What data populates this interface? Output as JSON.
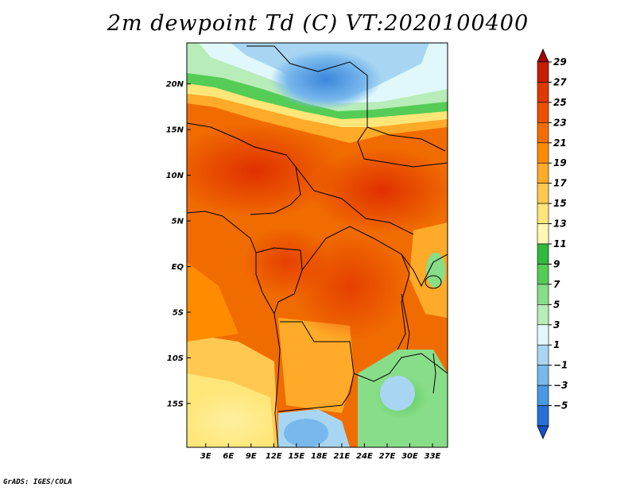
{
  "title": "2m dewpoint Td (C) VT:2020100400",
  "credit": "GrADS: IGES/COLA",
  "map": {
    "lat_labels": [
      "20N",
      "15N",
      "10N",
      "5N",
      "EQ",
      "5S",
      "10S",
      "15S"
    ],
    "lon_labels": [
      "3E",
      "6E",
      "9E",
      "12E",
      "15E",
      "18E",
      "21E",
      "24E",
      "27E",
      "30E",
      "33E"
    ],
    "lat_values": [
      20,
      15,
      10,
      5,
      0,
      -5,
      -10,
      -15
    ],
    "lon_values": [
      3,
      6,
      9,
      12,
      15,
      18,
      21,
      24,
      27,
      30,
      33
    ],
    "lon_range": [
      0.5,
      35
    ],
    "lat_range": [
      -19.8,
      24.5
    ],
    "unit": "°C"
  },
  "colorbar": {
    "labels": [
      "29",
      "27",
      "25",
      "23",
      "21",
      "19",
      "17",
      "15",
      "13",
      "11",
      "9",
      "7",
      "5",
      "3",
      "1",
      "−1",
      "−3",
      "−5"
    ],
    "colors": [
      "#a50000",
      "#c81e00",
      "#e13700",
      "#ed5000",
      "#f76e00",
      "#ff8c00",
      "#ffaa28",
      "#ffc850",
      "#ffe678",
      "#fff8b4",
      "#30b840",
      "#55cc55",
      "#88dd88",
      "#b8ecb8",
      "#e0f8fb",
      "#a8d6f2",
      "#78b8ec",
      "#4898e4",
      "#2870d8",
      "#1450c8"
    ]
  }
}
